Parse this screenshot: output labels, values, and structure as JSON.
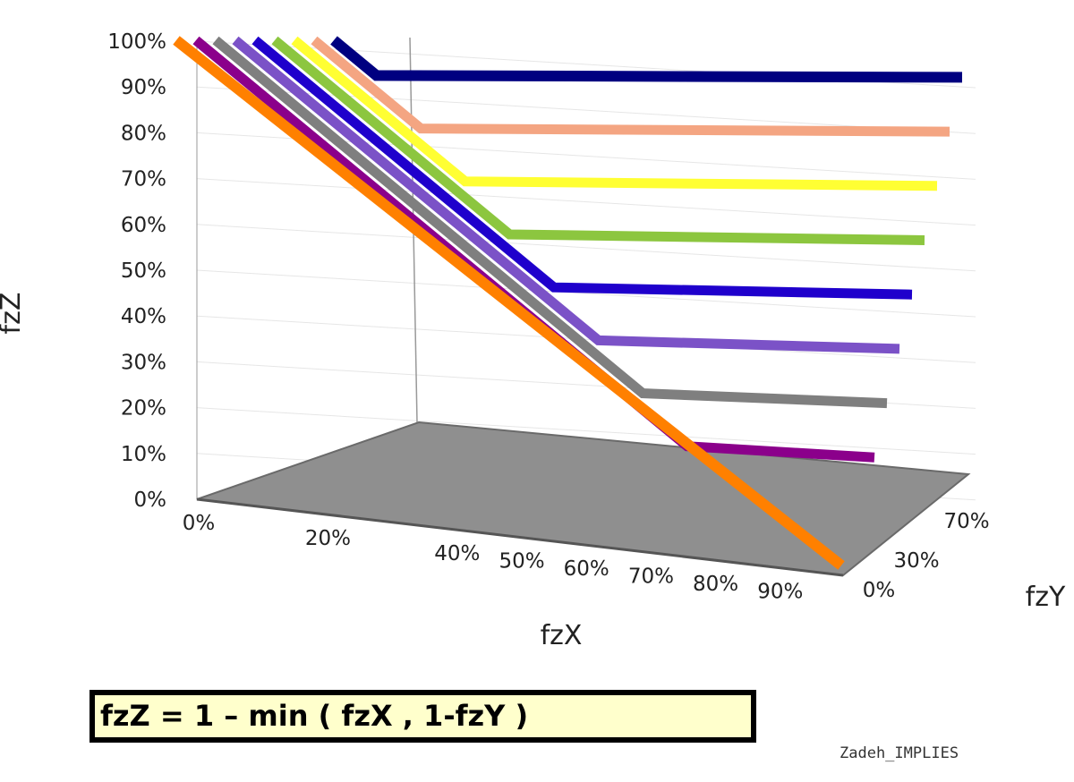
{
  "chart_data": {
    "type": "line",
    "chart_style": "3d-surface-slices",
    "title": "",
    "xlabel": "fzX",
    "ylabel": "fzY",
    "zlabel": "fzZ",
    "z_ticks": [
      "0%",
      "10%",
      "20%",
      "30%",
      "40%",
      "50%",
      "60%",
      "70%",
      "80%",
      "90%",
      "100%"
    ],
    "x_ticks": [
      "0%",
      "20%",
      "40%",
      "50%",
      "60%",
      "70%",
      "80%",
      "90%"
    ],
    "y_ticks": [
      "0%",
      "30%",
      "70%"
    ],
    "zlim": [
      0,
      100
    ],
    "grid": true,
    "formula": "fzZ = 1 – min ( fzX , 1-fzY )",
    "series": [
      {
        "color": "#000080",
        "plateau_z": 80
      },
      {
        "color": "#f4a582",
        "plateau_z": 70
      },
      {
        "color": "#ffff33",
        "plateau_z": 60
      },
      {
        "color": "#8cc63f",
        "plateau_z": 50
      },
      {
        "color": "#1f00cc",
        "plateau_z": 40
      },
      {
        "color": "#7b52c7",
        "plateau_z": 30
      },
      {
        "color": "#7f7f7f",
        "plateau_z": 20
      },
      {
        "color": "#8b008b",
        "plateau_z": 10
      },
      {
        "color": "#ff8000",
        "plateau_z": 0
      }
    ]
  },
  "caption": "Zadeh_IMPLIES"
}
